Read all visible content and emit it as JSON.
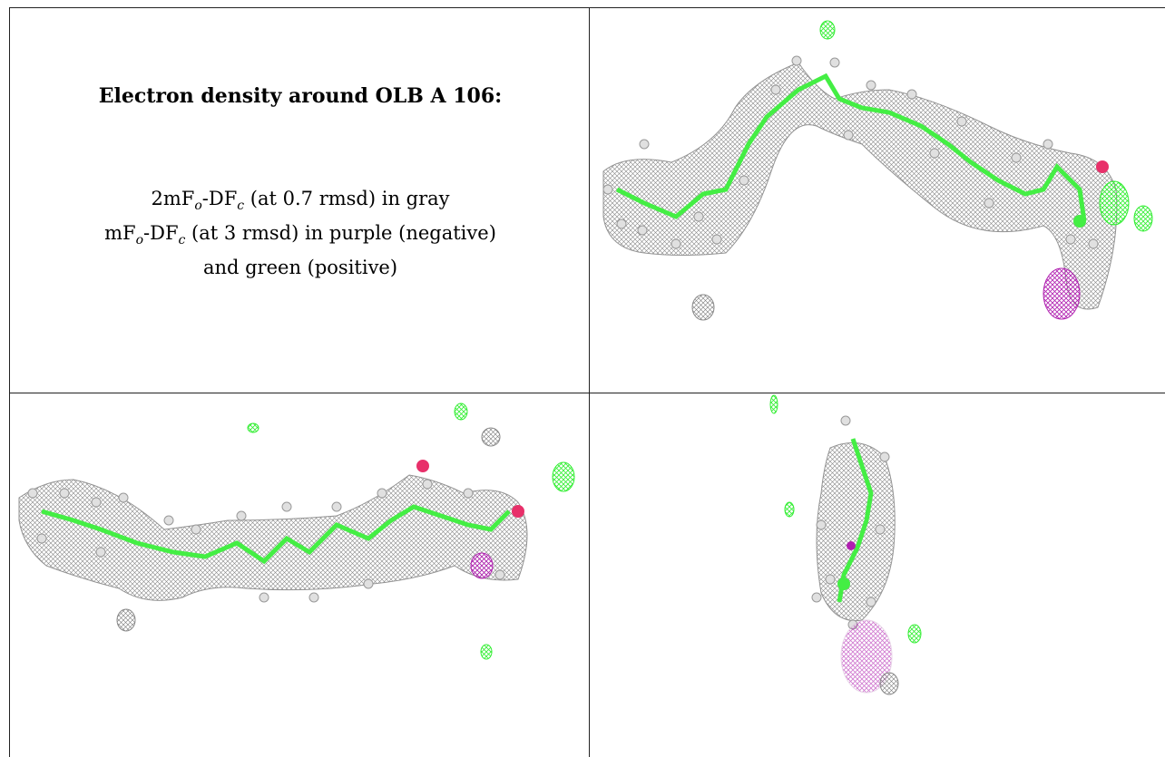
{
  "panel_text": {
    "title": "Electron density around OLB A 106:",
    "line1": {
      "pre": "2mF",
      "o": "o",
      "mid": "-DF",
      "c": "c",
      "post": " (at 0.7 rmsd) in gray"
    },
    "line2": {
      "pre": "mF",
      "o": "o",
      "mid": "-DF",
      "c": "c",
      "post": " (at 3 rmsd) in purple (negative)"
    },
    "line3": "and green (positive)"
  },
  "colors": {
    "density_gray": "#8c8c8c",
    "difference_positive": "#33ee33",
    "difference_negative": "#b020b0",
    "carbon": "#44ee44",
    "hydrogen": "#e6e6e6",
    "oxygen": "#e8306a",
    "grid_line": "#222222"
  },
  "panels": [
    {
      "id": "text-panel",
      "content": "legend"
    },
    {
      "id": "view-1",
      "content": "density-render"
    },
    {
      "id": "view-2",
      "content": "density-render"
    },
    {
      "id": "view-3",
      "content": "density-render"
    }
  ]
}
